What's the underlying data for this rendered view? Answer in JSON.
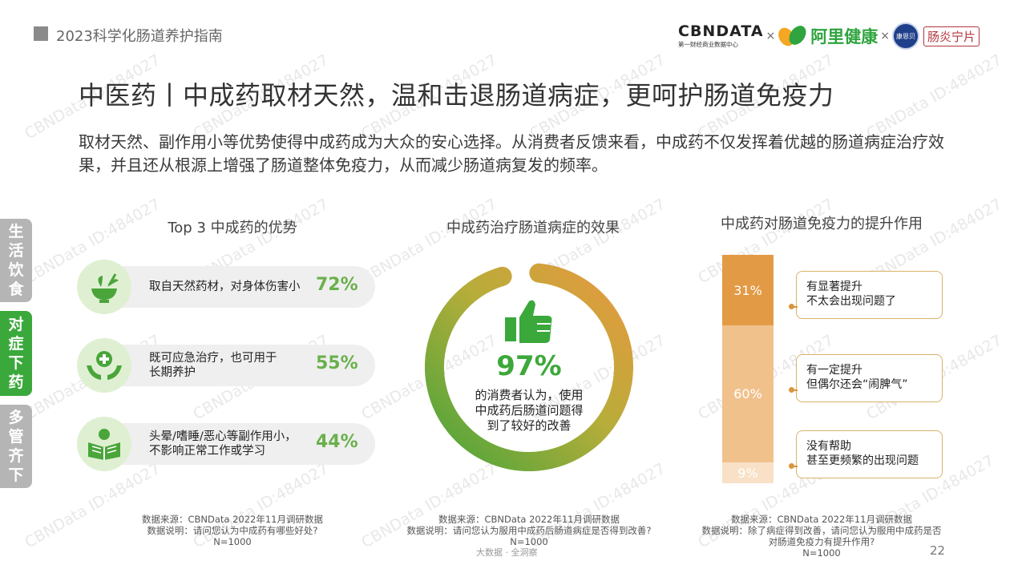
{
  "header": {
    "report_title": "2023科学化肠道养护指南",
    "logo_cbndata": "CBNDATA",
    "logo_cbndata_sub": "第一财经商业数据中心",
    "times": "×",
    "logo_ali": "阿里健康",
    "logo_brand_badge": "康恩贝",
    "logo_brand_name": "肠炎宁片"
  },
  "slide_title": "中医药丨中成药取材天然，温和击退肠道病症，更呵护肠道免疫力",
  "intro_text": "取材天然、副作用小等优势使得中成药成为大众的安心选择。从消费者反馈来看，中成药不仅发挥着优越的肠道病症治疗效果，并且还从根源上增强了肠道整体免疫力，从而减少肠道病复发的频率。",
  "side_tabs": [
    {
      "label": "生活饮食",
      "color": "#b5b5b5"
    },
    {
      "label": "对症下药",
      "color": "#3aa83b"
    },
    {
      "label": "多管齐下",
      "color": "#b5b5b5"
    }
  ],
  "colors": {
    "green": "#6ab04c",
    "orange_dark": "#e39a45",
    "orange_mid": "#f1c18c",
    "orange_light": "#f8e1c6"
  },
  "chart_data": [
    {
      "type": "bar",
      "title": "Top 3 中成药的优势",
      "categories": [
        "取自天然药材，对身体伤害小",
        "既可应急治疗，也可用于长期养护",
        "头晕/嗜睡/恶心等副作用小，不影响正常工作或学习"
      ],
      "labels": [
        [
          "取自天然药材，对身体伤害小"
        ],
        [
          "既可应急治疗，也可用于",
          "长期养护"
        ],
        [
          "头晕/嗜睡/恶心等副作用小，",
          "不影响正常工作或学习"
        ]
      ],
      "values": [
        72,
        55,
        44
      ],
      "value_labels": [
        "72%",
        "55%",
        "44%"
      ],
      "icons": [
        "herbal-bowl-icon",
        "care-hands-icon",
        "reading-person-icon"
      ],
      "source": [
        "数据来源：CBNData 2022年11月调研数据",
        "数据说明：请问您认为中成药有哪些好处?",
        "N=1000"
      ]
    },
    {
      "type": "pie",
      "title": "中成药治疗肠道病症的效果",
      "value": 97,
      "value_label": "97%",
      "description": [
        "的消费者认为，使用",
        "中成药后肠道问题得",
        "到了较好的改善"
      ],
      "source": [
        "数据来源：CBNData 2022年11月调研数据",
        "数据说明：请问您认为服用中成药后肠道病症是否得到改善?",
        "N=1000"
      ]
    },
    {
      "type": "bar",
      "title": "中成药对肠道免疫力的提升作用",
      "stacked": true,
      "series": [
        {
          "name": "有显著提升",
          "value": 31,
          "label": "31%",
          "callout": [
            "有显著提升",
            "不太会出现问题了"
          ]
        },
        {
          "name": "有一定提升",
          "value": 60,
          "label": "60%",
          "callout": [
            "有一定提升",
            "但偶尔还会“闹脾气”"
          ]
        },
        {
          "name": "没有帮助",
          "value": 9,
          "label": "9%",
          "callout": [
            "没有帮助",
            "甚至更频繁的出现问题"
          ]
        }
      ],
      "source": [
        "数据来源：CBNData 2022年11月调研数据",
        "数据说明：除了病症得到改善，请问您认为服用中成药是否",
        "对肠道免疫力有提升作用?",
        "N=1000"
      ]
    }
  ],
  "footer": {
    "tagline": "大数据 · 全洞察",
    "page_number": "22",
    "watermark": "CBNData ID:484027"
  }
}
